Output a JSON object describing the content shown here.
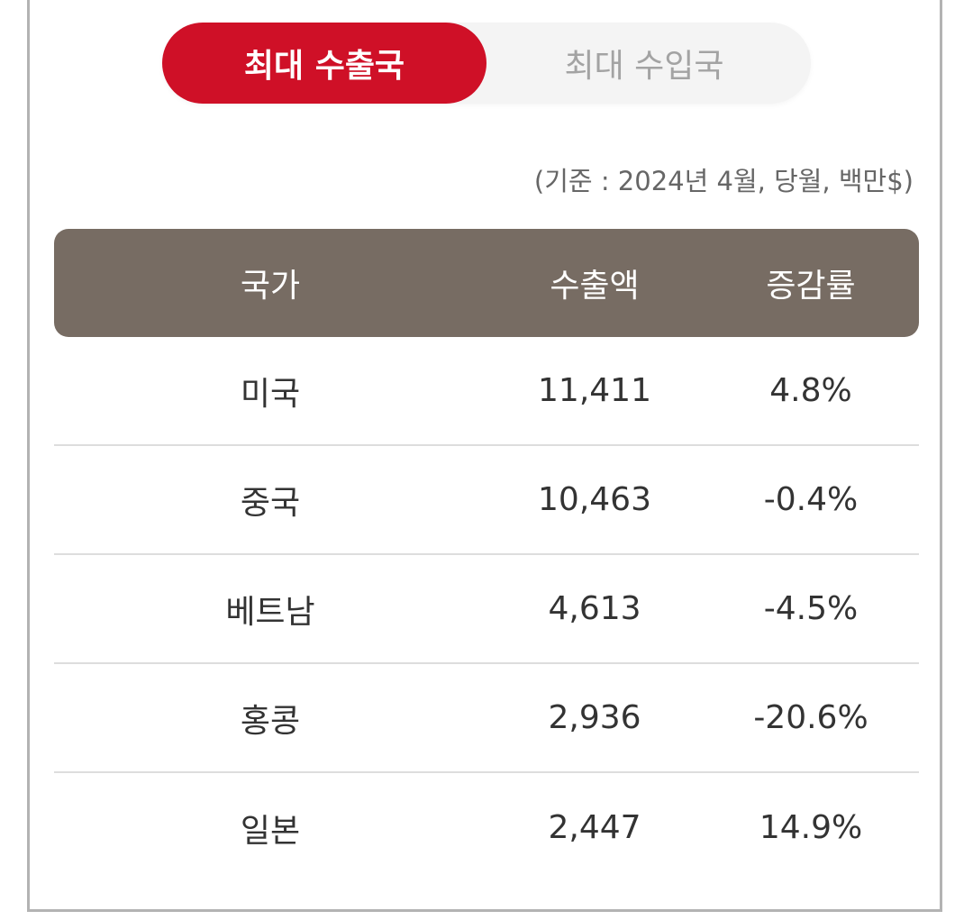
{
  "tabs": {
    "export_label": "최대 수출국",
    "import_label": "최대 수입국"
  },
  "note": "(기준 : 2024년 4월, 당월, 백만$)",
  "table": {
    "headers": [
      "국가",
      "수출액",
      "증감률"
    ],
    "rows": [
      [
        "미국",
        "11,411",
        "4.8%"
      ],
      [
        "중국",
        "10,463",
        "-0.4%"
      ],
      [
        "베트남",
        "4,613",
        "-4.5%"
      ],
      [
        "홍콩",
        "2,936",
        "-20.6%"
      ],
      [
        "일본",
        "2,447",
        "14.9%"
      ]
    ]
  },
  "colors": {
    "accent": "#cf1027",
    "header_bg": "#776c63",
    "inactive_tab_text": "#a3a3a3",
    "divider": "#dddddd"
  }
}
